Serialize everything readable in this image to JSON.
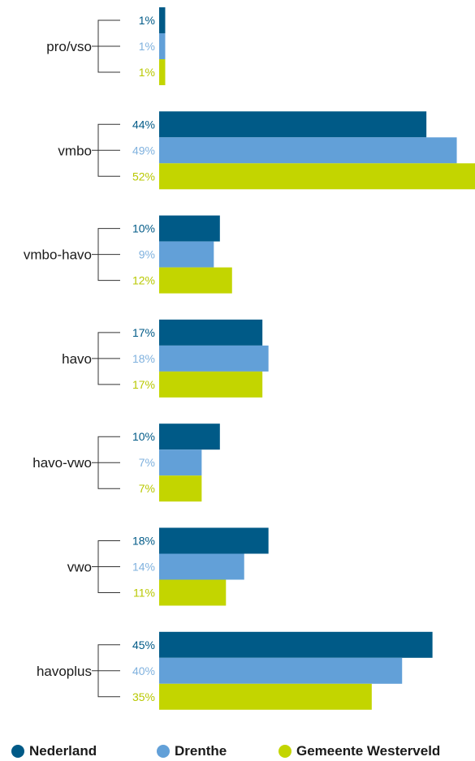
{
  "chart_data": {
    "type": "bar",
    "orientation": "horizontal",
    "categories": [
      "pro/vso",
      "vmbo",
      "vmbo-havo",
      "havo",
      "havo-vwo",
      "vwo",
      "havoplus"
    ],
    "series": [
      {
        "name": "Nederland",
        "color": "#005a87",
        "values": [
          1,
          44,
          10,
          17,
          10,
          18,
          45
        ],
        "labels": [
          "1%",
          "44%",
          "10%",
          "17%",
          "10%",
          "18%",
          "45%"
        ]
      },
      {
        "name": "Drenthe",
        "color": "#62a0d8",
        "values": [
          1,
          49,
          9,
          18,
          7,
          14,
          40
        ],
        "labels": [
          "1%",
          "49%",
          "9%",
          "18%",
          "7%",
          "14%",
          "40%"
        ]
      },
      {
        "name": "Gemeente Westerveld",
        "color": "#c3d500",
        "values": [
          1,
          52,
          12,
          17,
          7,
          11,
          35
        ],
        "labels": [
          "1%",
          "52%",
          "12%",
          "17%",
          "7%",
          "11%",
          "35%"
        ]
      }
    ],
    "xlim": [
      0,
      52
    ],
    "grid": false,
    "legend_position": "bottom"
  }
}
